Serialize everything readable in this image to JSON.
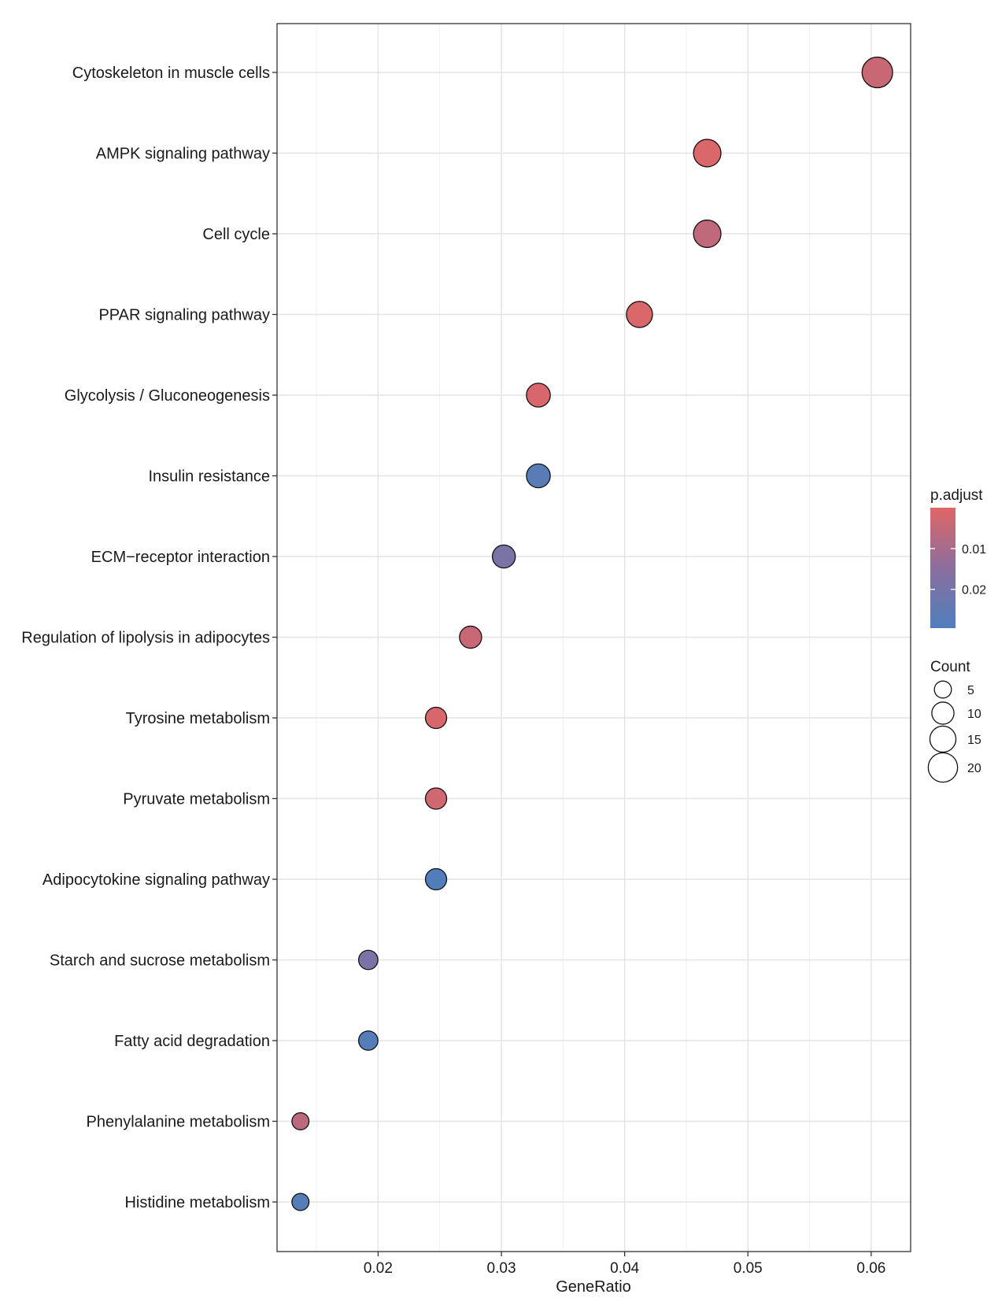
{
  "chart_data": {
    "type": "scatter",
    "title": "",
    "xlabel": "GeneRatio",
    "ylabel": "",
    "xlim": [
      0.0118,
      0.0632
    ],
    "x_ticks": [
      0.02,
      0.03,
      0.04,
      0.05,
      0.06
    ],
    "x_tick_labels": [
      "0.02",
      "0.03",
      "0.04",
      "0.05",
      "0.06"
    ],
    "grid": true,
    "points": [
      {
        "term": "Cytoskeleton in muscle cells",
        "gene_ratio": 0.0605,
        "count": 22,
        "p_adjust": 0.004
      },
      {
        "term": "AMPK signaling pathway",
        "gene_ratio": 0.0467,
        "count": 17,
        "p_adjust": 0.001
      },
      {
        "term": "Cell cycle",
        "gene_ratio": 0.0467,
        "count": 17,
        "p_adjust": 0.0055
      },
      {
        "term": "PPAR signaling pathway",
        "gene_ratio": 0.0412,
        "count": 15,
        "p_adjust": 0.001
      },
      {
        "term": "Glycolysis / Gluconeogenesis",
        "gene_ratio": 0.033,
        "count": 12,
        "p_adjust": 0.0015
      },
      {
        "term": "Insulin resistance",
        "gene_ratio": 0.033,
        "count": 12,
        "p_adjust": 0.027
      },
      {
        "term": "ECM−receptor interaction",
        "gene_ratio": 0.0302,
        "count": 11,
        "p_adjust": 0.019
      },
      {
        "term": "Regulation of lipolysis in adipocytes",
        "gene_ratio": 0.0275,
        "count": 10,
        "p_adjust": 0.004
      },
      {
        "term": "Tyrosine metabolism",
        "gene_ratio": 0.0247,
        "count": 9,
        "p_adjust": 0.0015
      },
      {
        "term": "Pyruvate metabolism",
        "gene_ratio": 0.0247,
        "count": 9,
        "p_adjust": 0.003
      },
      {
        "term": "Adipocytokine signaling pathway",
        "gene_ratio": 0.0247,
        "count": 9,
        "p_adjust": 0.029
      },
      {
        "term": "Starch and sucrose metabolism",
        "gene_ratio": 0.0192,
        "count": 7,
        "p_adjust": 0.019
      },
      {
        "term": "Fatty acid degradation",
        "gene_ratio": 0.0192,
        "count": 7,
        "p_adjust": 0.028
      },
      {
        "term": "Phenylalanine metabolism",
        "gene_ratio": 0.0137,
        "count": 5,
        "p_adjust": 0.006
      },
      {
        "term": "Histidine metabolism",
        "gene_ratio": 0.0137,
        "count": 5,
        "p_adjust": 0.028
      }
    ],
    "color_legend": {
      "title": "p.adjust",
      "range": [
        0.0,
        0.0295
      ],
      "breaks": [
        0.01,
        0.02
      ],
      "break_labels": [
        "0.01",
        "0.02"
      ],
      "low_color": "#E06666",
      "mid_color": "#8B6E9E",
      "high_color": "#4F7FBB"
    },
    "size_legend": {
      "title": "Count",
      "breaks": [
        5,
        10,
        15,
        20
      ],
      "break_labels": [
        "5",
        "10",
        "15",
        "20"
      ]
    }
  }
}
